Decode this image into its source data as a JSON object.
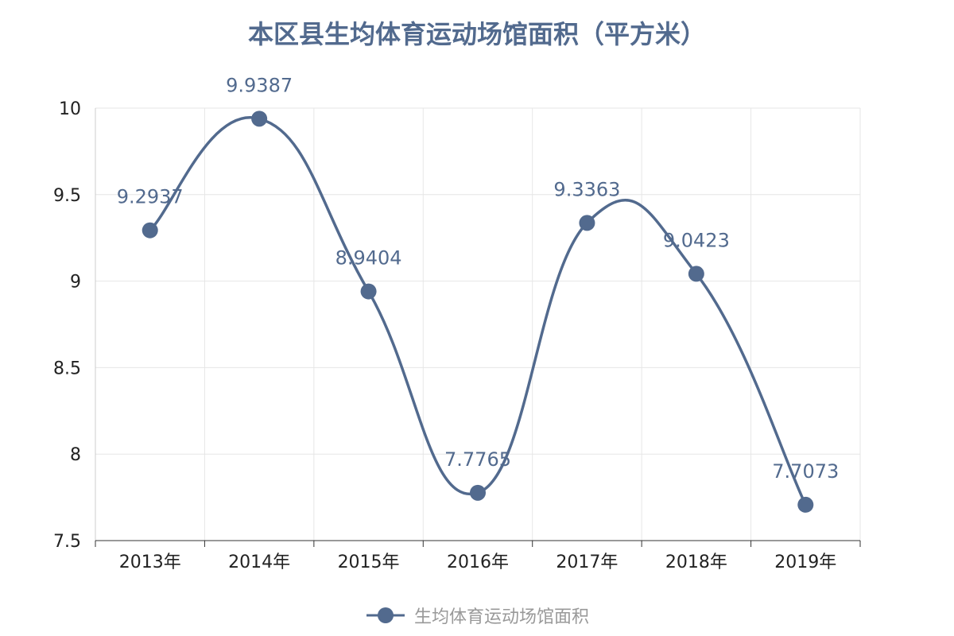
{
  "chart_data": {
    "type": "line",
    "title": "本区县生均体育运动场馆面积（平方米）",
    "categories": [
      "2013年",
      "2014年",
      "2015年",
      "2016年",
      "2017年",
      "2018年",
      "2019年"
    ],
    "series": [
      {
        "name": "生均体育运动场馆面积",
        "values": [
          9.2937,
          9.9387,
          8.9404,
          7.7765,
          9.3363,
          9.0423,
          7.7073
        ],
        "labels": [
          "9.2937",
          "9.9387",
          "8.9404",
          "7.7765",
          "9.3363",
          "9.0423",
          "7.7073"
        ],
        "color": "#526a8e",
        "smooth": true
      }
    ],
    "ylim": [
      7.5,
      10
    ],
    "yticks": [
      "7.5",
      "8",
      "8.5",
      "9",
      "9.5",
      "10"
    ],
    "grid": true,
    "legend_position": "bottom-center"
  }
}
